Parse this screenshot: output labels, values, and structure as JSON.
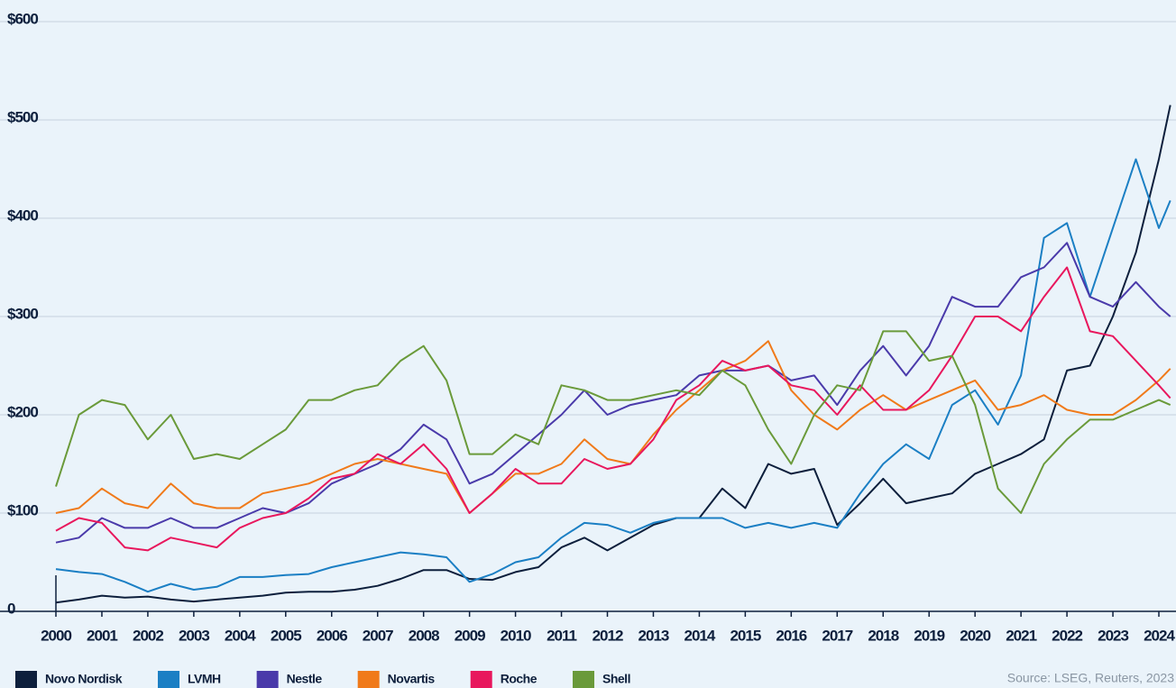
{
  "chart_data": {
    "type": "line",
    "x": [
      2000,
      2000.5,
      2001,
      2001.5,
      2002,
      2002.5,
      2003,
      2003.5,
      2004,
      2004.5,
      2005,
      2005.5,
      2006,
      2006.5,
      2007,
      2007.5,
      2008,
      2008.5,
      2009,
      2009.5,
      2010,
      2010.5,
      2011,
      2011.5,
      2012,
      2012.5,
      2013,
      2013.5,
      2014,
      2014.5,
      2015,
      2015.5,
      2016,
      2016.5,
      2017,
      2017.5,
      2018,
      2018.5,
      2019,
      2019.5,
      2020,
      2020.5,
      2021,
      2021.5,
      2022,
      2022.5,
      2023,
      2023.5,
      2024,
      2024.25
    ],
    "series": [
      {
        "name": "Novo Nordisk",
        "color": "#0d1f3c",
        "values": [
          9,
          12,
          16,
          14,
          15,
          12,
          10,
          12,
          14,
          16,
          19,
          20,
          20,
          22,
          26,
          33,
          42,
          42,
          33,
          32,
          40,
          45,
          65,
          75,
          62,
          75,
          88,
          95,
          95,
          125,
          105,
          150,
          140,
          145,
          88,
          110,
          135,
          110,
          115,
          120,
          140,
          150,
          160,
          175,
          245,
          250,
          300,
          365,
          460,
          515
        ]
      },
      {
        "name": "LVMH",
        "color": "#1b7fc4",
        "values": [
          43,
          40,
          38,
          30,
          20,
          28,
          22,
          25,
          35,
          35,
          37,
          38,
          45,
          50,
          55,
          60,
          58,
          55,
          30,
          38,
          50,
          55,
          75,
          90,
          88,
          80,
          90,
          95,
          95,
          95,
          85,
          90,
          85,
          90,
          85,
          120,
          150,
          170,
          155,
          210,
          225,
          190,
          240,
          380,
          395,
          320,
          390,
          460,
          390,
          418
        ]
      },
      {
        "name": "Nestle",
        "color": "#4a3aaa",
        "values": [
          70,
          75,
          95,
          85,
          85,
          95,
          85,
          85,
          95,
          105,
          100,
          110,
          130,
          140,
          150,
          165,
          190,
          175,
          130,
          140,
          160,
          180,
          200,
          225,
          200,
          210,
          215,
          220,
          240,
          245,
          245,
          250,
          235,
          240,
          210,
          245,
          270,
          240,
          270,
          320,
          310,
          310,
          340,
          350,
          375,
          320,
          310,
          335,
          310,
          300
        ]
      },
      {
        "name": "Novartis",
        "color": "#f07a1a",
        "values": [
          100,
          105,
          125,
          110,
          105,
          130,
          110,
          105,
          105,
          120,
          125,
          130,
          140,
          150,
          155,
          150,
          145,
          140,
          100,
          120,
          140,
          140,
          150,
          175,
          155,
          150,
          180,
          205,
          225,
          245,
          255,
          275,
          225,
          200,
          185,
          205,
          220,
          205,
          215,
          225,
          235,
          205,
          210,
          220,
          205,
          200,
          200,
          215,
          235,
          247
        ]
      },
      {
        "name": "Roche",
        "color": "#e8175d",
        "values": [
          82,
          95,
          90,
          65,
          62,
          75,
          70,
          65,
          85,
          95,
          100,
          115,
          135,
          140,
          160,
          150,
          170,
          145,
          100,
          120,
          145,
          130,
          130,
          155,
          145,
          150,
          175,
          215,
          230,
          255,
          245,
          250,
          230,
          225,
          200,
          230,
          205,
          205,
          225,
          260,
          300,
          300,
          285,
          320,
          350,
          285,
          280,
          255,
          230,
          217
        ]
      },
      {
        "name": "Shell",
        "color": "#6a9a3a",
        "values": [
          127,
          200,
          215,
          210,
          175,
          200,
          155,
          160,
          155,
          170,
          185,
          215,
          215,
          225,
          230,
          255,
          270,
          235,
          160,
          160,
          180,
          170,
          230,
          225,
          215,
          215,
          220,
          225,
          220,
          245,
          230,
          185,
          150,
          200,
          230,
          225,
          285,
          285,
          255,
          260,
          210,
          125,
          100,
          150,
          175,
          195,
          195,
          205,
          215,
          210
        ]
      }
    ],
    "xlim": [
      2000,
      2024.3
    ],
    "xticks": [
      2000,
      2001,
      2002,
      2003,
      2004,
      2005,
      2006,
      2007,
      2008,
      2009,
      2010,
      2011,
      2012,
      2013,
      2014,
      2015,
      2016,
      2017,
      2018,
      2019,
      2020,
      2021,
      2022,
      2023,
      2024
    ],
    "ylim": [
      0,
      600
    ],
    "yticks": [
      0,
      {
        "value": 100,
        "label": "$100"
      },
      {
        "value": 200,
        "label": "$200"
      },
      {
        "value": 300,
        "label": "$300"
      },
      {
        "value": 400,
        "label": "$400"
      },
      {
        "value": 500,
        "label": "$500"
      },
      {
        "value": 600,
        "label": "$600"
      }
    ],
    "grid": true,
    "legend": "bottom",
    "source": "Source: LSEG, Reuters, 2023"
  }
}
